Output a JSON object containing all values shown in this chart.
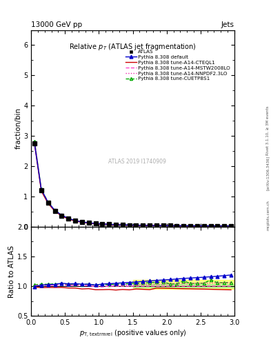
{
  "title_left": "13000 GeV pp",
  "title_right": "Jets",
  "plot_title": "Relative $p_T$ (ATLAS jet fragmentation)",
  "ylabel_main": "fraction/bin",
  "ylabel_ratio": "Ratio to ATLAS",
  "watermark": "ATLAS 2019 I1740909",
  "rivet_text": "Rivet 3.1.10, ≥ 3M events",
  "arxiv_text": "[arXiv:1306.3436]",
  "mcplots_text": "mcplots.cern.ch",
  "x_data": [
    0.05,
    0.15,
    0.25,
    0.35,
    0.45,
    0.55,
    0.65,
    0.75,
    0.85,
    0.95,
    1.05,
    1.15,
    1.25,
    1.35,
    1.45,
    1.55,
    1.65,
    1.75,
    1.85,
    1.95,
    2.05,
    2.15,
    2.25,
    2.35,
    2.45,
    2.55,
    2.65,
    2.75,
    2.85,
    2.95
  ],
  "atlas_y": [
    2.76,
    1.2,
    0.78,
    0.52,
    0.36,
    0.26,
    0.19,
    0.15,
    0.12,
    0.1,
    0.085,
    0.072,
    0.062,
    0.054,
    0.048,
    0.042,
    0.038,
    0.034,
    0.031,
    0.029,
    0.027,
    0.025,
    0.023,
    0.022,
    0.021,
    0.02,
    0.019,
    0.018,
    0.017,
    0.016
  ],
  "pythia_default_y": [
    2.74,
    1.22,
    0.8,
    0.535,
    0.378,
    0.27,
    0.198,
    0.155,
    0.124,
    0.102,
    0.088,
    0.075,
    0.065,
    0.057,
    0.051,
    0.045,
    0.041,
    0.037,
    0.034,
    0.032,
    0.03,
    0.028,
    0.026,
    0.025,
    0.024,
    0.023,
    0.022,
    0.021,
    0.02,
    0.019
  ],
  "pythia_cteq_y": [
    2.72,
    1.17,
    0.763,
    0.508,
    0.352,
    0.252,
    0.184,
    0.143,
    0.115,
    0.094,
    0.08,
    0.068,
    0.058,
    0.051,
    0.045,
    0.04,
    0.036,
    0.032,
    0.03,
    0.028,
    0.026,
    0.024,
    0.022,
    0.021,
    0.02,
    0.019,
    0.018,
    0.017,
    0.016,
    0.015
  ],
  "pythia_mstw_y": [
    2.78,
    1.21,
    0.792,
    0.527,
    0.367,
    0.263,
    0.193,
    0.151,
    0.121,
    0.099,
    0.084,
    0.072,
    0.062,
    0.054,
    0.048,
    0.042,
    0.038,
    0.034,
    0.031,
    0.029,
    0.027,
    0.025,
    0.023,
    0.022,
    0.021,
    0.02,
    0.019,
    0.018,
    0.017,
    0.016
  ],
  "pythia_nnpdf_y": [
    2.8,
    1.22,
    0.798,
    0.532,
    0.37,
    0.265,
    0.194,
    0.152,
    0.122,
    0.1,
    0.085,
    0.072,
    0.063,
    0.055,
    0.049,
    0.043,
    0.039,
    0.035,
    0.032,
    0.03,
    0.028,
    0.026,
    0.024,
    0.023,
    0.022,
    0.021,
    0.02,
    0.019,
    0.018,
    0.017
  ],
  "pythia_cuetp_y": [
    2.82,
    1.24,
    0.805,
    0.54,
    0.375,
    0.268,
    0.197,
    0.154,
    0.124,
    0.102,
    0.087,
    0.074,
    0.064,
    0.056,
    0.05,
    0.044,
    0.04,
    0.036,
    0.033,
    0.031,
    0.028,
    0.026,
    0.025,
    0.023,
    0.022,
    0.021,
    0.02,
    0.019,
    0.018,
    0.017
  ],
  "ratio_default": [
    0.993,
    1.017,
    1.026,
    1.029,
    1.05,
    1.038,
    1.042,
    1.033,
    1.033,
    1.02,
    1.035,
    1.042,
    1.048,
    1.056,
    1.063,
    1.071,
    1.079,
    1.088,
    1.097,
    1.103,
    1.111,
    1.12,
    1.13,
    1.136,
    1.143,
    1.15,
    1.158,
    1.167,
    1.176,
    1.188
  ],
  "ratio_cteq": [
    0.986,
    0.975,
    0.978,
    0.977,
    0.978,
    0.969,
    0.968,
    0.953,
    0.958,
    0.94,
    0.941,
    0.944,
    0.935,
    0.944,
    0.938,
    0.952,
    0.947,
    0.941,
    0.968,
    0.966,
    0.963,
    0.96,
    0.957,
    0.955,
    0.952,
    0.95,
    0.947,
    0.944,
    0.941,
    0.938
  ],
  "ratio_mstw": [
    1.007,
    1.008,
    1.015,
    1.013,
    1.019,
    1.012,
    1.016,
    1.007,
    1.008,
    0.99,
    0.988,
    1.0,
    1.0,
    1.0,
    1.0,
    1.0,
    1.0,
    1.0,
    1.0,
    1.0,
    1.0,
    1.0,
    1.0,
    1.0,
    1.0,
    1.0,
    1.0,
    1.0,
    1.0,
    1.0
  ],
  "ratio_nnpdf": [
    1.014,
    1.017,
    1.023,
    1.023,
    1.028,
    1.019,
    1.021,
    1.013,
    1.017,
    1.0,
    1.0,
    1.0,
    1.016,
    1.019,
    1.021,
    1.024,
    1.026,
    1.029,
    1.032,
    1.034,
    1.037,
    1.04,
    1.043,
    1.045,
    1.048,
    1.05,
    1.053,
    1.056,
    1.058,
    1.061
  ],
  "ratio_cuetp": [
    1.022,
    1.033,
    1.032,
    1.038,
    1.042,
    1.031,
    1.037,
    1.027,
    1.033,
    1.02,
    1.024,
    1.028,
    1.032,
    1.037,
    1.042,
    1.048,
    1.053,
    1.059,
    1.065,
    1.069,
    1.037,
    1.04,
    1.087,
    1.045,
    1.048,
    1.05,
    1.105,
    1.056,
    1.059,
    1.063
  ],
  "color_atlas": "#000000",
  "color_default": "#0000cc",
  "color_cteq": "#cc0000",
  "color_mstw": "#ff44cc",
  "color_nnpdf": "#ee22aa",
  "color_cuetp": "#00aa00",
  "ylim_main": [
    0,
    6.5
  ],
  "ylim_ratio": [
    0.5,
    2.0
  ],
  "xlim": [
    0,
    3.0
  ],
  "yticks_main": [
    0,
    1,
    2,
    3,
    4,
    5,
    6
  ],
  "yticks_ratio": [
    0.5,
    1.0,
    1.5,
    2.0
  ],
  "bg_color": "#ffffff"
}
